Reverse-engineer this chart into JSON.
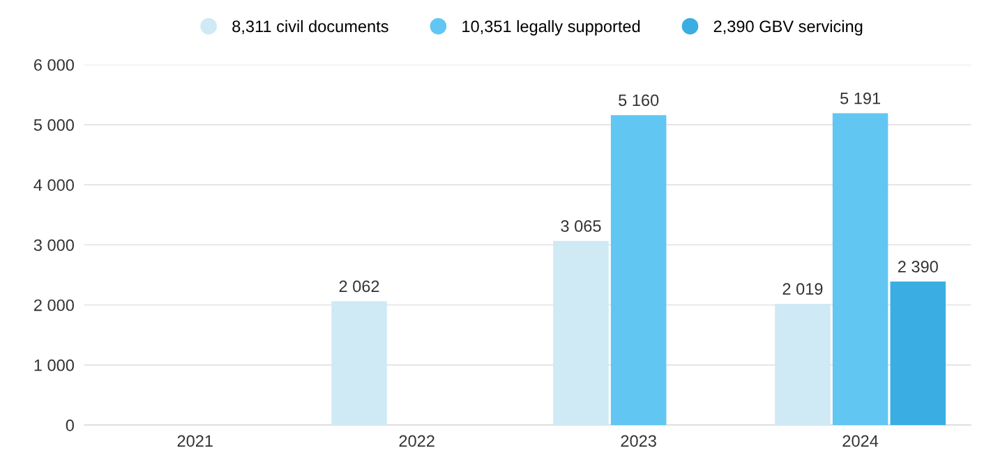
{
  "chart_data": {
    "type": "bar",
    "categories": [
      "2021",
      "2022",
      "2023",
      "2024"
    ],
    "series": [
      {
        "name": "8,311 civil documents",
        "color": "#cfe9f5",
        "values": [
          null,
          2062,
          3065,
          2019
        ],
        "value_labels": [
          null,
          "2 062",
          "3 065",
          "2 019"
        ]
      },
      {
        "name": "10,351 legally supported",
        "color": "#62c6f2",
        "values": [
          null,
          null,
          5160,
          5191
        ],
        "value_labels": [
          null,
          null,
          "5 160",
          "5 191"
        ]
      },
      {
        "name": "2,390 GBV servicing",
        "color": "#3aaee2",
        "values": [
          null,
          null,
          null,
          2390
        ],
        "value_labels": [
          null,
          null,
          null,
          "2 390"
        ]
      }
    ],
    "ylim": [
      0,
      6000
    ],
    "yticks": [
      {
        "value": 0,
        "label": "0"
      },
      {
        "value": 1000,
        "label": "1 000"
      },
      {
        "value": 2000,
        "label": "2 000"
      },
      {
        "value": 3000,
        "label": "3 000"
      },
      {
        "value": 4000,
        "label": "4 000"
      },
      {
        "value": 5000,
        "label": "5 000"
      },
      {
        "value": 6000,
        "label": "6 000"
      }
    ],
    "grid": "y",
    "legend": "top",
    "marker": "circle"
  }
}
